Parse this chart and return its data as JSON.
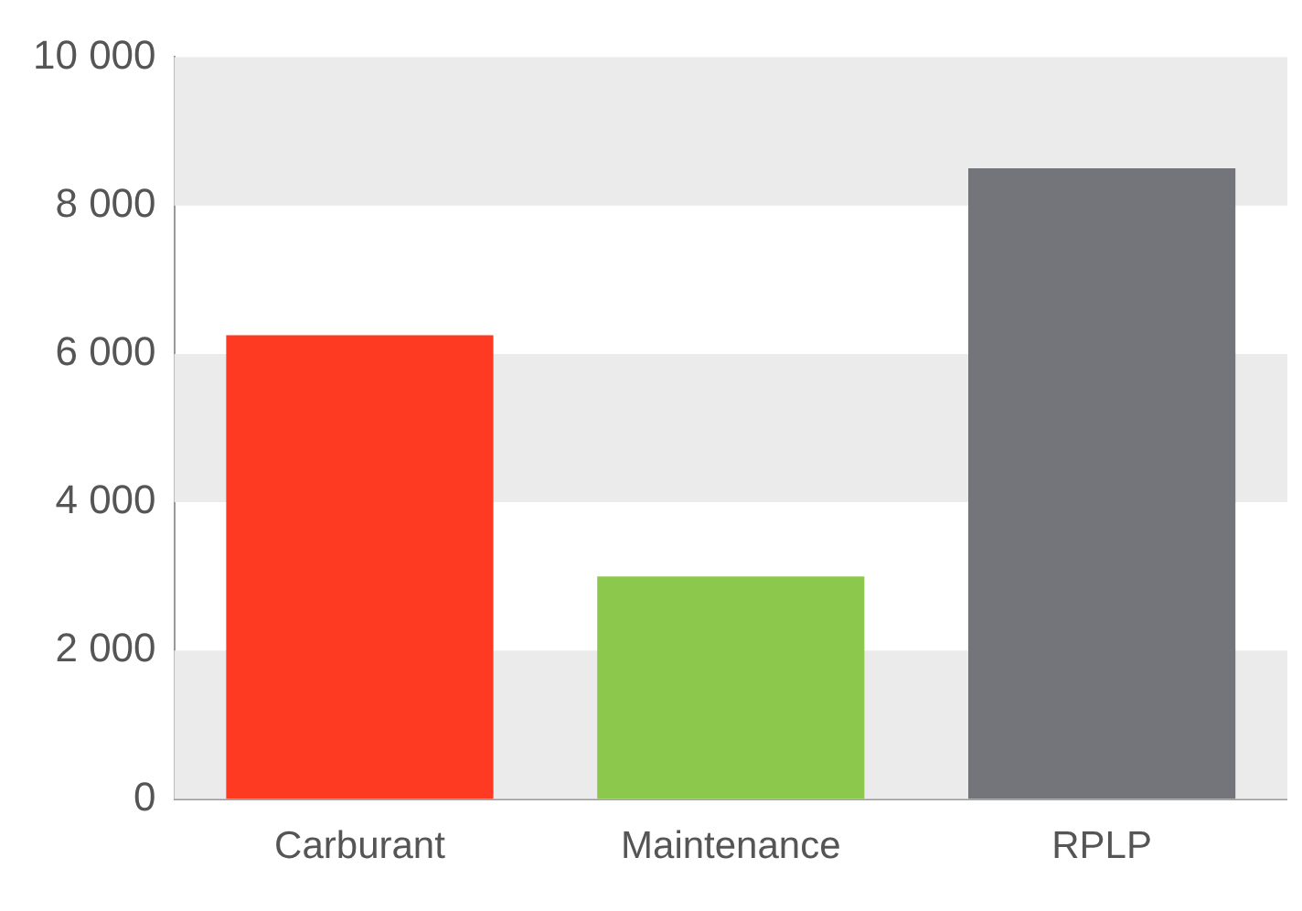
{
  "chart_data": {
    "type": "bar",
    "categories": [
      "Carburant",
      "Maintenance",
      "RPLP"
    ],
    "values": [
      6250,
      3000,
      8500
    ],
    "colors": [
      "#ff3a22",
      "#8cc84b",
      "#74757a"
    ],
    "ylim": [
      0,
      10000
    ],
    "yticks": [
      {
        "value": 0,
        "label": "0"
      },
      {
        "value": 2000,
        "label": "2 000"
      },
      {
        "value": 4000,
        "label": "4 000"
      },
      {
        "value": 6000,
        "label": "6 000"
      },
      {
        "value": 8000,
        "label": "8 000"
      },
      {
        "value": 10000,
        "label": "10 000"
      }
    ],
    "bands": [
      {
        "axis": "y",
        "from": 0,
        "to": 2000,
        "color": "#ebebeb"
      },
      {
        "axis": "y",
        "from": 4000,
        "to": 6000,
        "color": "#ebebeb"
      },
      {
        "axis": "y",
        "from": 8000,
        "to": 10000,
        "color": "#ebebeb"
      }
    ],
    "legend": false
  }
}
